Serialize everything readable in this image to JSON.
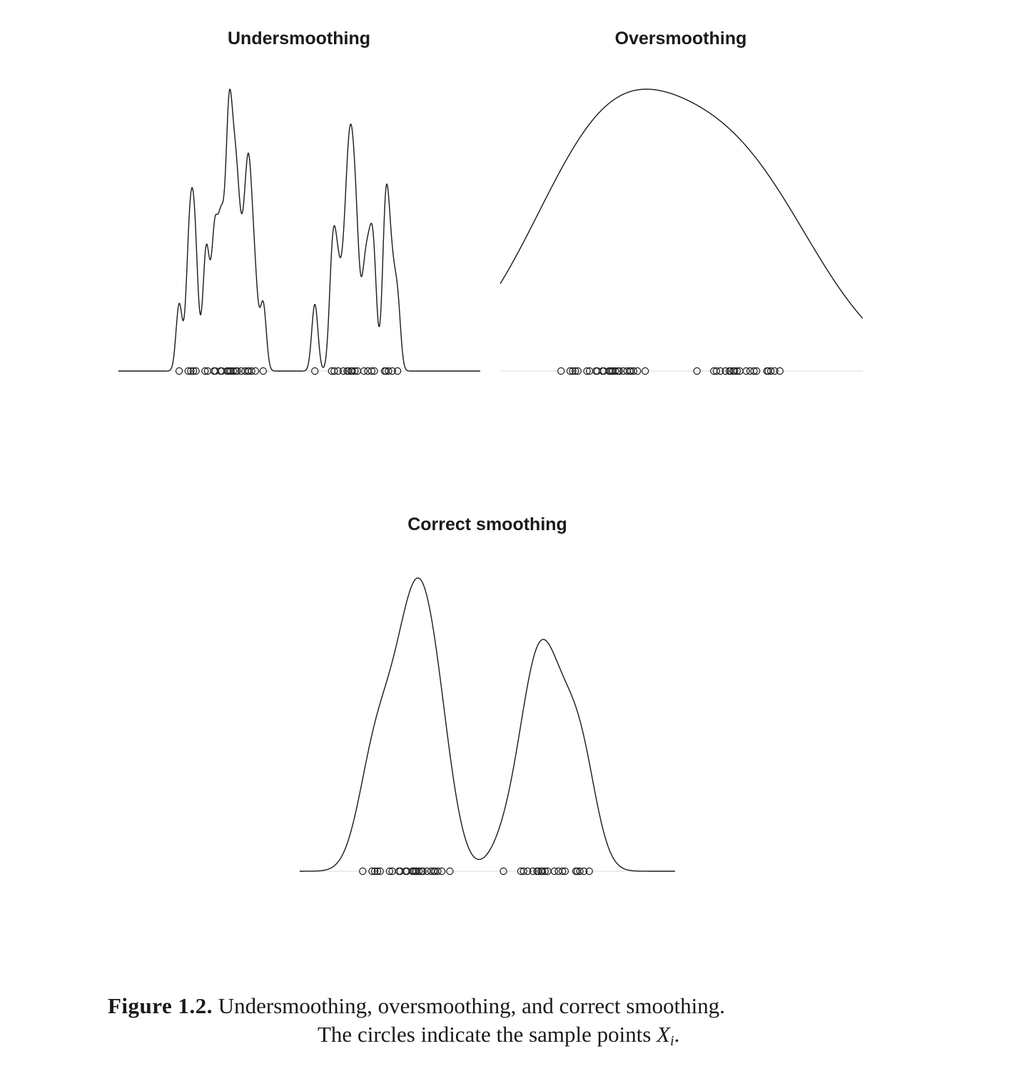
{
  "figure": {
    "label": "Figure 1.2.",
    "caption_line1": "Undersmoothing, oversmoothing, and correct smoothing.",
    "caption_line2_prefix": "The circles indicate the sample points ",
    "caption_var": "X",
    "caption_sub": "i",
    "caption_suffix": "."
  },
  "chart_data": [
    {
      "type": "line",
      "title": "Undersmoothing",
      "xlabel": "",
      "ylabel": "",
      "bandwidth": 0.012,
      "xlim": [
        -0.2,
        1.2
      ],
      "samples": [
        0.035,
        0.07,
        0.08,
        0.09,
        0.1,
        0.135,
        0.145,
        0.17,
        0.175,
        0.195,
        0.2,
        0.22,
        0.225,
        0.23,
        0.235,
        0.245,
        0.255,
        0.26,
        0.275,
        0.29,
        0.3,
        0.305,
        0.315,
        0.33,
        0.36,
        0.56,
        0.625,
        0.635,
        0.65,
        0.67,
        0.685,
        0.69,
        0.7,
        0.705,
        0.715,
        0.725,
        0.75,
        0.765,
        0.78,
        0.79,
        0.83,
        0.835,
        0.845,
        0.86,
        0.88
      ],
      "rug": true,
      "color": "#1a1a1a"
    },
    {
      "type": "line",
      "title": "Oversmoothing",
      "xlabel": "",
      "ylabel": "",
      "bandwidth": 0.28,
      "xlim": [
        -0.2,
        1.2
      ],
      "samples": [
        0.035,
        0.07,
        0.08,
        0.09,
        0.1,
        0.135,
        0.145,
        0.17,
        0.175,
        0.195,
        0.2,
        0.22,
        0.225,
        0.23,
        0.235,
        0.245,
        0.255,
        0.26,
        0.275,
        0.29,
        0.3,
        0.305,
        0.315,
        0.33,
        0.36,
        0.56,
        0.625,
        0.635,
        0.65,
        0.67,
        0.685,
        0.69,
        0.7,
        0.705,
        0.715,
        0.725,
        0.75,
        0.765,
        0.78,
        0.79,
        0.83,
        0.835,
        0.845,
        0.86,
        0.88
      ],
      "rug": true,
      "color": "#1a1a1a"
    },
    {
      "type": "line",
      "title": "Correct smoothing",
      "xlabel": "",
      "ylabel": "",
      "bandwidth": 0.055,
      "xlim": [
        -0.2,
        1.2
      ],
      "samples": [
        0.035,
        0.07,
        0.08,
        0.09,
        0.1,
        0.135,
        0.145,
        0.17,
        0.175,
        0.195,
        0.2,
        0.22,
        0.225,
        0.23,
        0.235,
        0.245,
        0.255,
        0.26,
        0.275,
        0.29,
        0.3,
        0.305,
        0.315,
        0.33,
        0.36,
        0.56,
        0.625,
        0.635,
        0.65,
        0.67,
        0.685,
        0.69,
        0.7,
        0.705,
        0.715,
        0.725,
        0.75,
        0.765,
        0.78,
        0.79,
        0.83,
        0.835,
        0.845,
        0.86,
        0.88
      ],
      "rug": true,
      "color": "#1a1a1a"
    }
  ]
}
